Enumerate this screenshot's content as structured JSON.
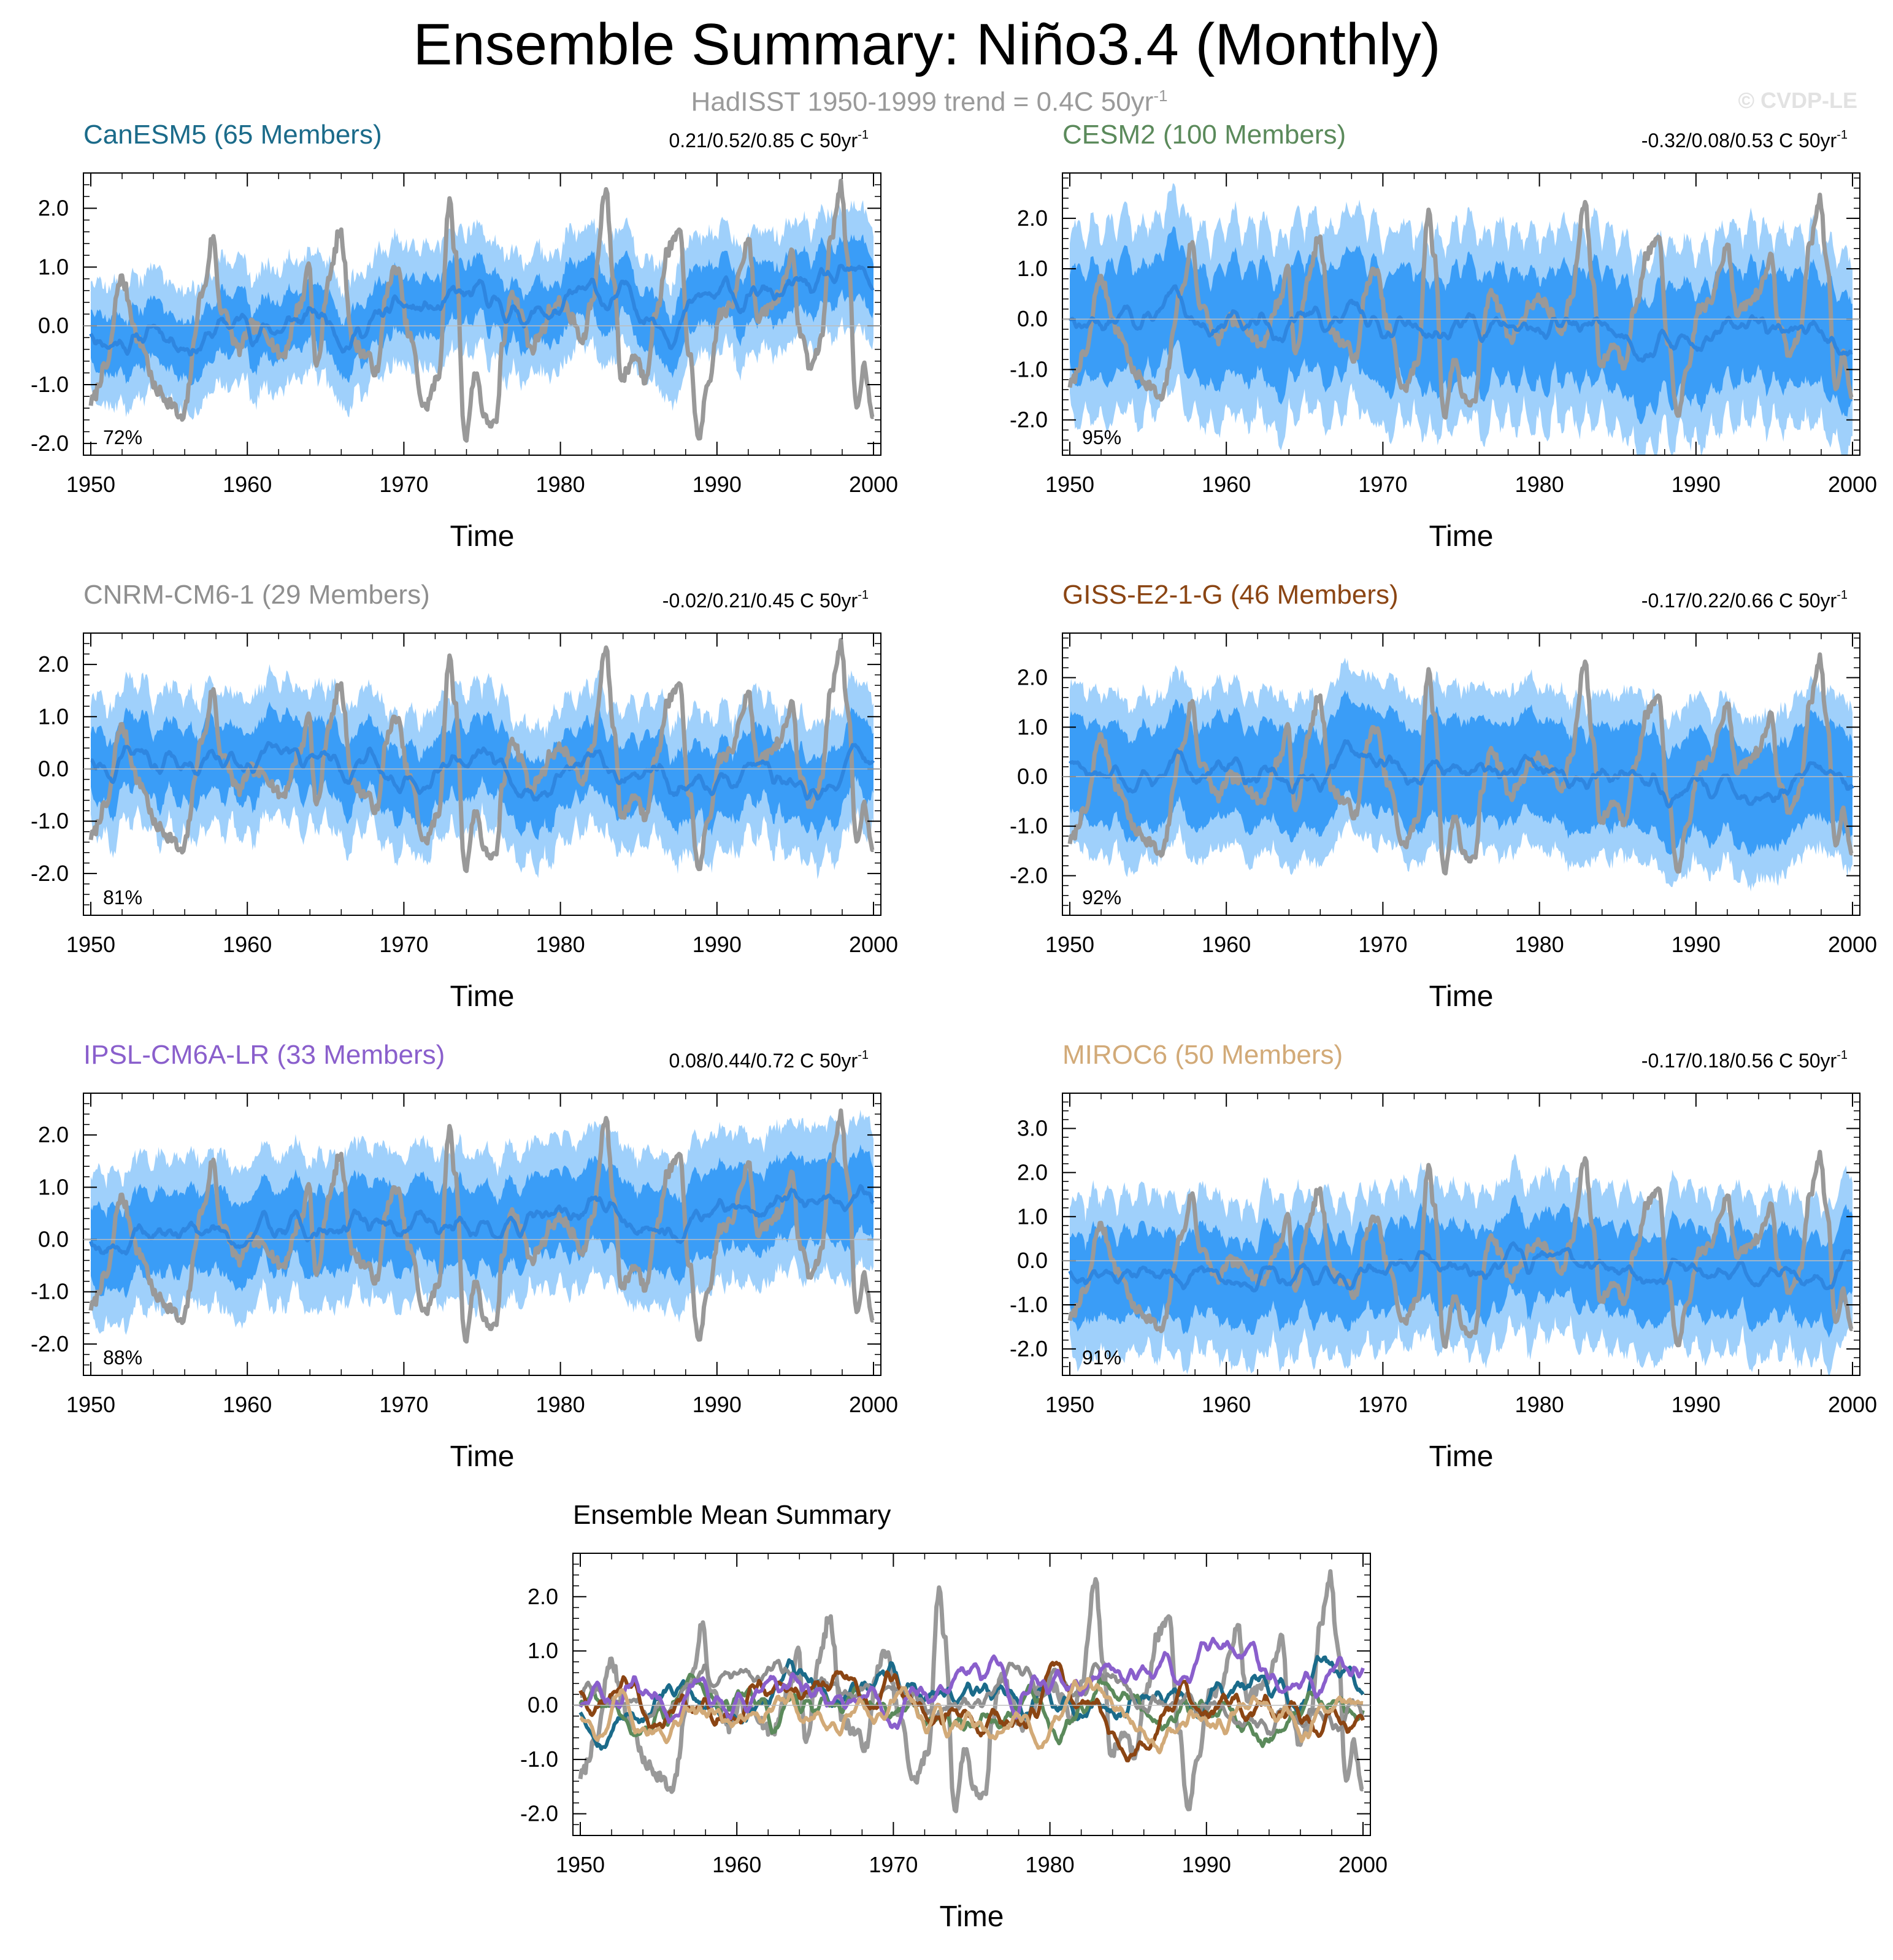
{
  "title": "Ensemble Summary: Niño3.4 (Monthly)",
  "subtitle_text": "HadISST 1950-1999 trend = 0.4C 50yr",
  "subtitle_sup": "-1",
  "copyright": "© CVDP-LE",
  "colors": {
    "observed": "#999999",
    "band_outer": "#9fd0fb",
    "band_inner": "#3a9df7",
    "ens_mean": "#2e86e0"
  },
  "chart_data": [
    {
      "type": "line",
      "id": "canesm5",
      "title": "CanESM5 (65 Members)",
      "title_color": "#1b6b8a",
      "trend": "0.21/0.52/0.85 C 50yr",
      "trend_sup": "-1",
      "percent": "72%",
      "xlabel": "Time",
      "xticks": [
        1950,
        1960,
        1970,
        1980,
        1990,
        2000
      ],
      "xticklabels": [
        "1950",
        "1960",
        "1970",
        "1980",
        "1990",
        "2000"
      ],
      "xlim": [
        1950,
        2000
      ],
      "ylim": [
        -2.2,
        2.6
      ],
      "yticks": [
        -2.0,
        -1.0,
        0.0,
        1.0,
        2.0
      ],
      "yticklabels": [
        "-2.0",
        "-1.0",
        "0.0",
        "1.0",
        "2.0"
      ],
      "band_inner_halfwidth": 0.45,
      "band_outer_halfwidth": 0.95,
      "band_seasonal_amp": 0.12,
      "mean_start": -0.1,
      "mean_end": 0.5,
      "series": [
        {
          "name": "",
          "role": "observed",
          "color": "#999999"
        },
        {
          "name": "",
          "role": "ensemble-mean",
          "color": "#2e86e0"
        }
      ]
    },
    {
      "type": "line",
      "id": "cesm2",
      "title": "CESM2 (100 Members)",
      "title_color": "#5b8a5b",
      "trend": "-0.32/0.08/0.53 C 50yr",
      "trend_sup": "-1",
      "percent": "95%",
      "xlabel": "Time",
      "xticks": [
        1950,
        1960,
        1970,
        1980,
        1990,
        2000
      ],
      "xticklabels": [
        "1950",
        "1960",
        "1970",
        "1980",
        "1990",
        "2000"
      ],
      "xlim": [
        1950,
        2000
      ],
      "ylim": [
        -2.7,
        2.9
      ],
      "yticks": [
        -2.0,
        -1.0,
        0.0,
        1.0,
        2.0
      ],
      "yticklabels": [
        "-2.0",
        "-1.0",
        "0.0",
        "1.0",
        "2.0"
      ],
      "band_inner_halfwidth": 0.9,
      "band_outer_halfwidth": 1.55,
      "band_seasonal_amp": 0.55,
      "mean_start": 0.05,
      "mean_end": -0.3,
      "series": [
        {
          "name": "",
          "role": "observed",
          "color": "#999999"
        },
        {
          "name": "",
          "role": "ensemble-mean",
          "color": "#2e86e0"
        }
      ]
    },
    {
      "type": "line",
      "id": "cnrm",
      "title": "CNRM-CM6-1 (29 Members)",
      "title_color": "#8f8f8f",
      "trend": "-0.02/0.21/0.45 C 50yr",
      "trend_sup": "-1",
      "percent": "81%",
      "xlabel": "Time",
      "xticks": [
        1950,
        1960,
        1970,
        1980,
        1990,
        2000
      ],
      "xticklabels": [
        "1950",
        "1960",
        "1970",
        "1980",
        "1990",
        "2000"
      ],
      "xlim": [
        1950,
        2000
      ],
      "ylim": [
        -2.8,
        2.6
      ],
      "yticks": [
        -2.0,
        -1.0,
        0.0,
        1.0,
        2.0
      ],
      "yticklabels": [
        "-2.0",
        "-1.0",
        "0.0",
        "1.0",
        "2.0"
      ],
      "band_inner_halfwidth": 0.55,
      "band_outer_halfwidth": 1.1,
      "band_seasonal_amp": 0.35,
      "mean_start": 0.2,
      "mean_end": -0.2,
      "series": [
        {
          "name": "",
          "role": "observed",
          "color": "#999999"
        },
        {
          "name": "",
          "role": "ensemble-mean",
          "color": "#2e86e0"
        }
      ]
    },
    {
      "type": "line",
      "id": "giss",
      "title": "GISS-E2-1-G (46 Members)",
      "title_color": "#8b4513",
      "trend": "-0.17/0.22/0.66 C 50yr",
      "trend_sup": "-1",
      "percent": "92%",
      "xlabel": "Time",
      "xticks": [
        1950,
        1960,
        1970,
        1980,
        1990,
        2000
      ],
      "xticklabels": [
        "1950",
        "1960",
        "1970",
        "1980",
        "1990",
        "2000"
      ],
      "xlim": [
        1950,
        2000
      ],
      "ylim": [
        -2.8,
        2.9
      ],
      "yticks": [
        -2.0,
        -1.0,
        0.0,
        1.0,
        2.0
      ],
      "yticklabels": [
        "-2.0",
        "-1.0",
        "0.0",
        "1.0",
        "2.0"
      ],
      "band_inner_halfwidth": 0.95,
      "band_outer_halfwidth": 1.55,
      "band_seasonal_amp": 0.15,
      "mean_start": 0.3,
      "mean_end": -0.25,
      "series": [
        {
          "name": "",
          "role": "observed",
          "color": "#999999"
        },
        {
          "name": "",
          "role": "ensemble-mean",
          "color": "#2e86e0"
        }
      ]
    },
    {
      "type": "line",
      "id": "ipsl",
      "title": "IPSL-CM6A-LR (33 Members)",
      "title_color": "#8a5fcc",
      "trend": "0.08/0.44/0.72 C 50yr",
      "trend_sup": "-1",
      "percent": "88%",
      "xlabel": "Time",
      "xticks": [
        1950,
        1960,
        1970,
        1980,
        1990,
        2000
      ],
      "xticklabels": [
        "1950",
        "1960",
        "1970",
        "1980",
        "1990",
        "2000"
      ],
      "xlim": [
        1950,
        2000
      ],
      "ylim": [
        -2.6,
        2.8
      ],
      "yticks": [
        -2.0,
        -1.0,
        0.0,
        1.0,
        2.0
      ],
      "yticklabels": [
        "-2.0",
        "-1.0",
        "0.0",
        "1.0",
        "2.0"
      ],
      "band_inner_halfwidth": 0.7,
      "band_outer_halfwidth": 1.3,
      "band_seasonal_amp": 0.2,
      "mean_start": 0.0,
      "mean_end": 0.8,
      "series": [
        {
          "name": "",
          "role": "observed",
          "color": "#999999"
        },
        {
          "name": "",
          "role": "ensemble-mean",
          "color": "#2e86e0"
        }
      ]
    },
    {
      "type": "line",
      "id": "miroc6",
      "title": "MIROC6 (50 Members)",
      "title_color": "#d2aa78",
      "trend": "-0.17/0.18/0.56 C 50yr",
      "trend_sup": "-1",
      "percent": "91%",
      "xlabel": "Time",
      "xticks": [
        1950,
        1960,
        1970,
        1980,
        1990,
        2000
      ],
      "xticklabels": [
        "1950",
        "1960",
        "1970",
        "1980",
        "1990",
        "2000"
      ],
      "xlim": [
        1950,
        2000
      ],
      "ylim": [
        -2.6,
        3.8
      ],
      "yticks": [
        -2.0,
        -1.0,
        0.0,
        1.0,
        2.0,
        3.0
      ],
      "yticklabels": [
        "-2.0",
        "-1.0",
        "0.0",
        "1.0",
        "2.0",
        "3.0"
      ],
      "band_inner_halfwidth": 0.8,
      "band_outer_halfwidth": 1.5,
      "band_seasonal_amp": 0.45,
      "mean_start": -0.2,
      "mean_end": -0.15,
      "series": [
        {
          "name": "",
          "role": "observed",
          "color": "#999999"
        },
        {
          "name": "",
          "role": "ensemble-mean",
          "color": "#2e86e0"
        }
      ]
    },
    {
      "type": "line",
      "id": "ens-mean-summary",
      "title": "Ensemble Mean Summary",
      "title_color": "#000000",
      "xlabel": "Time",
      "xticks": [
        1950,
        1960,
        1970,
        1980,
        1990,
        2000
      ],
      "xticklabels": [
        "1950",
        "1960",
        "1970",
        "1980",
        "1990",
        "2000"
      ],
      "xlim": [
        1950,
        2000
      ],
      "ylim": [
        -2.4,
        2.8
      ],
      "yticks": [
        -2.0,
        -1.0,
        0.0,
        1.0,
        2.0
      ],
      "yticklabels": [
        "-2.0",
        "-1.0",
        "0.0",
        "1.0",
        "2.0"
      ],
      "series": [
        {
          "name": "",
          "role": "observed",
          "color": "#999999"
        },
        {
          "name": "",
          "role": "canesm5-mean",
          "color": "#1b6b8a"
        },
        {
          "name": "",
          "role": "cesm2-mean",
          "color": "#5b8a5b"
        },
        {
          "name": "",
          "role": "cnrm-mean",
          "color": "#8f8f8f"
        },
        {
          "name": "",
          "role": "giss-mean",
          "color": "#8b4513"
        },
        {
          "name": "",
          "role": "ipsl-mean",
          "color": "#8a5fcc"
        },
        {
          "name": "",
          "role": "miroc6-mean",
          "color": "#d2aa78"
        }
      ]
    }
  ],
  "observed_nino34": {
    "note_units": "degC anomaly",
    "time": [
      1950.0,
      1951.0,
      1951.9,
      1953.2,
      1954.2,
      1955.1,
      1955.8,
      1957.2,
      1957.8,
      1958.3,
      1959.5,
      1960.2,
      1961.0,
      1962.2,
      1963.5,
      1963.9,
      1964.4,
      1965.3,
      1965.9,
      1966.8,
      1967.6,
      1968.3,
      1968.9,
      1969.5,
      1970.4,
      1971.3,
      1972.2,
      1972.9,
      1973.3,
      1973.9,
      1974.6,
      1975.2,
      1975.9,
      1976.3,
      1976.9,
      1977.5,
      1978.1,
      1978.8,
      1979.4,
      1980.1,
      1980.8,
      1981.4,
      1982.0,
      1982.9,
      1983.4,
      1983.9,
      1984.8,
      1985.4,
      1986.1,
      1986.9,
      1987.6,
      1988.2,
      1988.8,
      1989.4,
      1990.2,
      1990.9,
      1991.6,
      1992.0,
      1992.6,
      1993.3,
      1993.9,
      1994.8,
      1995.3,
      1996.0,
      1996.6,
      1997.3,
      1997.9,
      1998.4,
      1998.9,
      1999.4,
      2000.0
    ],
    "values": [
      -1.3,
      -0.7,
      0.8,
      -0.3,
      -1.1,
      -1.3,
      -1.6,
      0.6,
      1.5,
      0.3,
      -0.4,
      0.0,
      -0.1,
      -0.5,
      0.4,
      1.1,
      -0.7,
      0.9,
      1.6,
      -0.3,
      -0.5,
      -0.8,
      0.6,
      1.0,
      -0.2,
      -1.4,
      -0.9,
      2.1,
      1.2,
      -1.9,
      -0.8,
      -1.6,
      -1.7,
      -0.3,
      0.6,
      0.2,
      -0.4,
      -0.1,
      0.3,
      0.4,
      0.1,
      -0.3,
      0.4,
      2.3,
      0.8,
      -0.9,
      -0.5,
      -0.9,
      0.2,
      1.3,
      1.6,
      -0.4,
      -1.9,
      -1.1,
      0.2,
      0.3,
      1.1,
      1.5,
      0.1,
      0.3,
      0.5,
      1.2,
      -0.1,
      -0.7,
      -0.3,
      1.5,
      2.4,
      1.0,
      -1.4,
      -0.7,
      -1.5
    ]
  }
}
